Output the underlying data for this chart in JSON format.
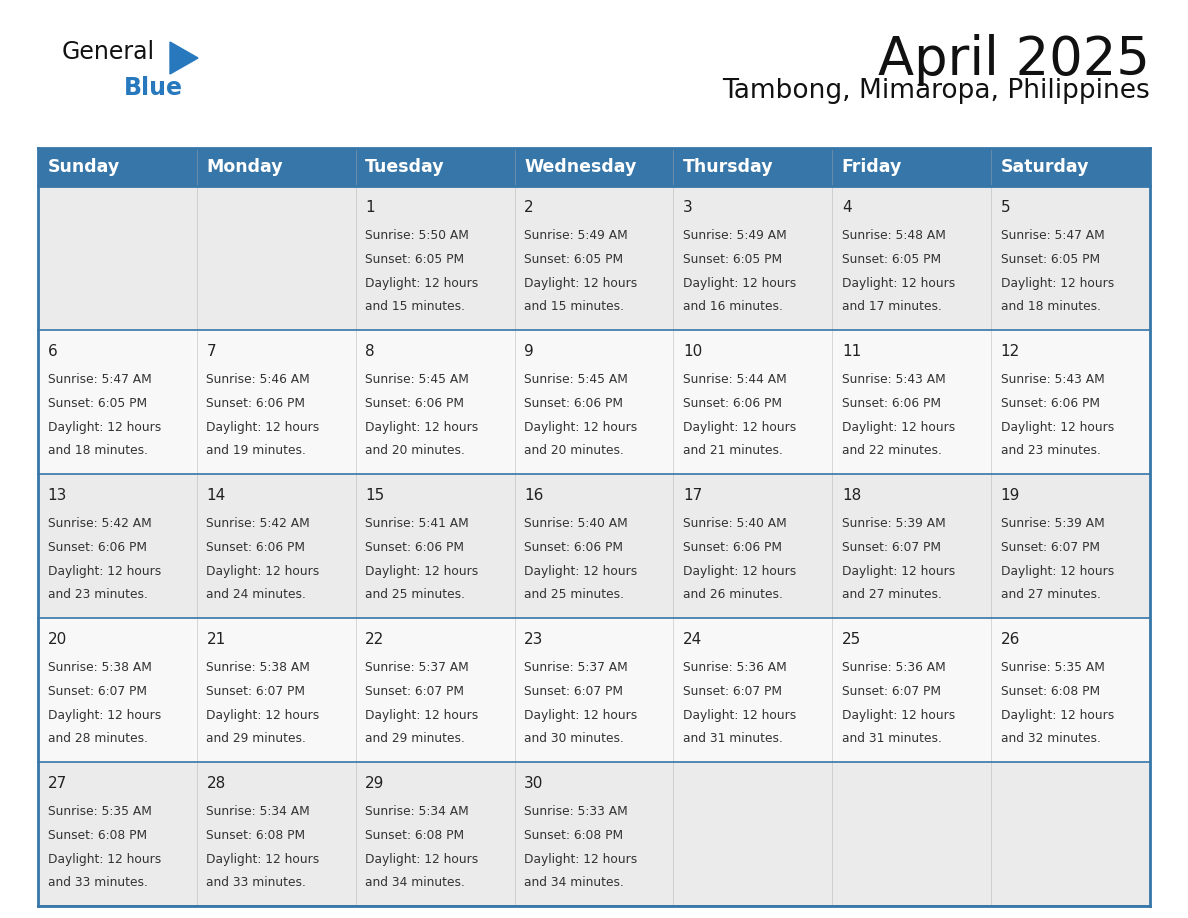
{
  "title": "April 2025",
  "subtitle": "Tambong, Mimaropa, Philippines",
  "header_bg": "#3776a8",
  "header_text_color": "#ffffff",
  "cell_bg_odd": "#ebebeb",
  "cell_bg_even": "#f8f8f8",
  "day_number_color": "#222222",
  "cell_text_color": "#333333",
  "border_color": "#3776a8",
  "days_of_week": [
    "Sunday",
    "Monday",
    "Tuesday",
    "Wednesday",
    "Thursday",
    "Friday",
    "Saturday"
  ],
  "calendar_data": [
    [
      {
        "day": "",
        "sunrise": "",
        "sunset": "",
        "daylight_min": ""
      },
      {
        "day": "",
        "sunrise": "",
        "sunset": "",
        "daylight_min": ""
      },
      {
        "day": "1",
        "sunrise": "5:50 AM",
        "sunset": "6:05 PM",
        "daylight_min": "15 minutes."
      },
      {
        "day": "2",
        "sunrise": "5:49 AM",
        "sunset": "6:05 PM",
        "daylight_min": "15 minutes."
      },
      {
        "day": "3",
        "sunrise": "5:49 AM",
        "sunset": "6:05 PM",
        "daylight_min": "16 minutes."
      },
      {
        "day": "4",
        "sunrise": "5:48 AM",
        "sunset": "6:05 PM",
        "daylight_min": "17 minutes."
      },
      {
        "day": "5",
        "sunrise": "5:47 AM",
        "sunset": "6:05 PM",
        "daylight_min": "18 minutes."
      }
    ],
    [
      {
        "day": "6",
        "sunrise": "5:47 AM",
        "sunset": "6:05 PM",
        "daylight_min": "18 minutes."
      },
      {
        "day": "7",
        "sunrise": "5:46 AM",
        "sunset": "6:06 PM",
        "daylight_min": "19 minutes."
      },
      {
        "day": "8",
        "sunrise": "5:45 AM",
        "sunset": "6:06 PM",
        "daylight_min": "20 minutes."
      },
      {
        "day": "9",
        "sunrise": "5:45 AM",
        "sunset": "6:06 PM",
        "daylight_min": "20 minutes."
      },
      {
        "day": "10",
        "sunrise": "5:44 AM",
        "sunset": "6:06 PM",
        "daylight_min": "21 minutes."
      },
      {
        "day": "11",
        "sunrise": "5:43 AM",
        "sunset": "6:06 PM",
        "daylight_min": "22 minutes."
      },
      {
        "day": "12",
        "sunrise": "5:43 AM",
        "sunset": "6:06 PM",
        "daylight_min": "23 minutes."
      }
    ],
    [
      {
        "day": "13",
        "sunrise": "5:42 AM",
        "sunset": "6:06 PM",
        "daylight_min": "23 minutes."
      },
      {
        "day": "14",
        "sunrise": "5:42 AM",
        "sunset": "6:06 PM",
        "daylight_min": "24 minutes."
      },
      {
        "day": "15",
        "sunrise": "5:41 AM",
        "sunset": "6:06 PM",
        "daylight_min": "25 minutes."
      },
      {
        "day": "16",
        "sunrise": "5:40 AM",
        "sunset": "6:06 PM",
        "daylight_min": "25 minutes."
      },
      {
        "day": "17",
        "sunrise": "5:40 AM",
        "sunset": "6:06 PM",
        "daylight_min": "26 minutes."
      },
      {
        "day": "18",
        "sunrise": "5:39 AM",
        "sunset": "6:07 PM",
        "daylight_min": "27 minutes."
      },
      {
        "day": "19",
        "sunrise": "5:39 AM",
        "sunset": "6:07 PM",
        "daylight_min": "27 minutes."
      }
    ],
    [
      {
        "day": "20",
        "sunrise": "5:38 AM",
        "sunset": "6:07 PM",
        "daylight_min": "28 minutes."
      },
      {
        "day": "21",
        "sunrise": "5:38 AM",
        "sunset": "6:07 PM",
        "daylight_min": "29 minutes."
      },
      {
        "day": "22",
        "sunrise": "5:37 AM",
        "sunset": "6:07 PM",
        "daylight_min": "29 minutes."
      },
      {
        "day": "23",
        "sunrise": "5:37 AM",
        "sunset": "6:07 PM",
        "daylight_min": "30 minutes."
      },
      {
        "day": "24",
        "sunrise": "5:36 AM",
        "sunset": "6:07 PM",
        "daylight_min": "31 minutes."
      },
      {
        "day": "25",
        "sunrise": "5:36 AM",
        "sunset": "6:07 PM",
        "daylight_min": "31 minutes."
      },
      {
        "day": "26",
        "sunrise": "5:35 AM",
        "sunset": "6:08 PM",
        "daylight_min": "32 minutes."
      }
    ],
    [
      {
        "day": "27",
        "sunrise": "5:35 AM",
        "sunset": "6:08 PM",
        "daylight_min": "33 minutes."
      },
      {
        "day": "28",
        "sunrise": "5:34 AM",
        "sunset": "6:08 PM",
        "daylight_min": "33 minutes."
      },
      {
        "day": "29",
        "sunrise": "5:34 AM",
        "sunset": "6:08 PM",
        "daylight_min": "34 minutes."
      },
      {
        "day": "30",
        "sunrise": "5:33 AM",
        "sunset": "6:08 PM",
        "daylight_min": "34 minutes."
      },
      {
        "day": "",
        "sunrise": "",
        "sunset": "",
        "daylight_min": ""
      },
      {
        "day": "",
        "sunrise": "",
        "sunset": "",
        "daylight_min": ""
      },
      {
        "day": "",
        "sunrise": "",
        "sunset": "",
        "daylight_min": ""
      }
    ]
  ],
  "logo_general_color": "#111111",
  "logo_blue_color": "#2878be",
  "title_fontsize": 38,
  "subtitle_fontsize": 19,
  "header_fontsize": 12.5,
  "day_num_fontsize": 11,
  "cell_text_fontsize": 8.8
}
